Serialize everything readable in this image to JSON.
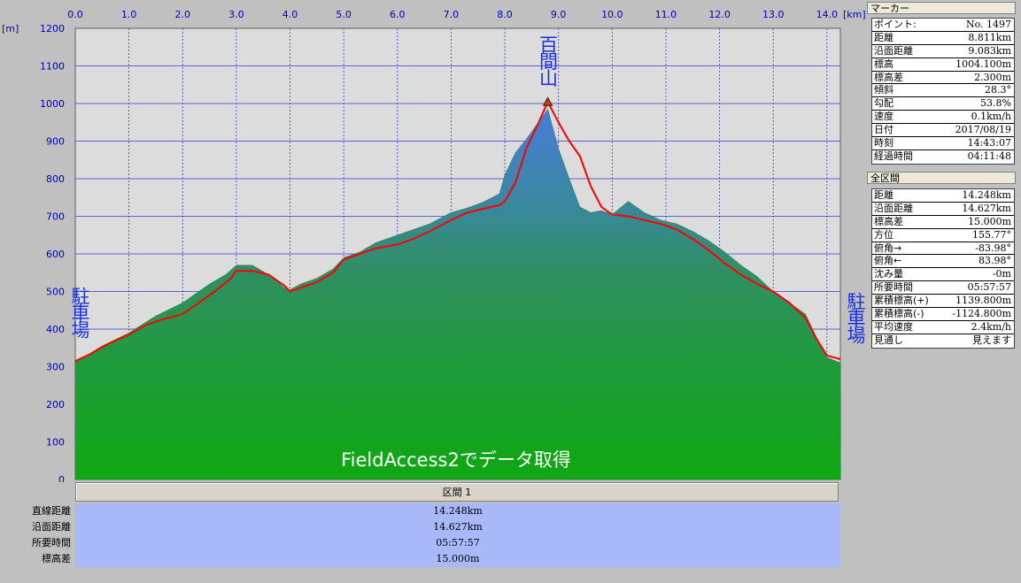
{
  "chart_data": {
    "type": "area",
    "x_unit": "[km]",
    "y_unit": "[m]",
    "x_ticks": [
      "0.0",
      "1.0",
      "2.0",
      "3.0",
      "4.0",
      "5.0",
      "6.0",
      "7.0",
      "8.0",
      "9.0",
      "10.0",
      "11.0",
      "12.0",
      "13.0",
      "14.0"
    ],
    "y_ticks": [
      "0",
      "100",
      "200",
      "300",
      "400",
      "500",
      "600",
      "700",
      "800",
      "900",
      "1000",
      "1100",
      "1200"
    ],
    "xlim": [
      0,
      14.25
    ],
    "ylim": [
      0,
      1200
    ],
    "grid": true,
    "series": [
      {
        "color": "#22a028",
        "x": [
          0,
          0.5,
          1.0,
          1.5,
          2.0,
          2.5,
          2.8,
          3.0,
          3.3,
          3.6,
          3.9,
          4.0,
          4.2,
          4.5,
          4.8,
          5.0,
          5.3,
          5.6,
          6.0,
          6.3,
          6.6,
          7.0,
          7.3,
          7.6,
          7.9,
          8.0,
          8.2,
          8.4,
          8.6,
          8.8,
          9.0,
          9.2,
          9.4,
          9.6,
          9.8,
          10.0,
          10.3,
          10.6,
          10.9,
          11.2,
          11.5,
          11.8,
          12.1,
          12.4,
          12.7,
          13.0,
          13.3,
          13.6,
          13.8,
          14.0,
          14.25
        ],
        "y": [
          312,
          355,
          390,
          435,
          470,
          520,
          545,
          570,
          570,
          545,
          510,
          505,
          520,
          535,
          560,
          590,
          605,
          630,
          650,
          665,
          680,
          710,
          722,
          738,
          760,
          810,
          870,
          905,
          945,
          985,
          880,
          800,
          725,
          710,
          715,
          705,
          740,
          710,
          690,
          680,
          660,
          635,
          605,
          570,
          540,
          500,
          470,
          440,
          380,
          325,
          310
        ]
      },
      {
        "color": "#ff0000",
        "x": [
          0,
          0.3,
          0.6,
          1.0,
          1.3,
          1.6,
          2.0,
          2.3,
          2.6,
          2.9,
          3.0,
          3.3,
          3.6,
          3.9,
          4.0,
          4.2,
          4.5,
          4.8,
          5.0,
          5.3,
          5.6,
          6.0,
          6.3,
          6.6,
          7.0,
          7.3,
          7.6,
          7.9,
          8.0,
          8.2,
          8.4,
          8.6,
          8.8,
          9.0,
          9.2,
          9.4,
          9.6,
          9.8,
          10.0,
          10.3,
          10.6,
          10.9,
          11.2,
          11.5,
          11.8,
          12.1,
          12.4,
          12.7,
          13.0,
          13.3,
          13.6,
          13.8,
          14.0,
          14.25
        ],
        "y": [
          315,
          335,
          360,
          385,
          410,
          425,
          440,
          470,
          500,
          535,
          555,
          555,
          545,
          515,
          500,
          510,
          525,
          550,
          585,
          600,
          615,
          625,
          640,
          660,
          690,
          710,
          720,
          730,
          740,
          790,
          880,
          940,
          1004,
          950,
          900,
          860,
          780,
          725,
          705,
          700,
          690,
          680,
          665,
          640,
          610,
          575,
          545,
          520,
          500,
          470,
          430,
          375,
          330,
          320
        ]
      }
    ],
    "annotations": [
      {
        "text": "百間山",
        "x": 8.8,
        "y": 1004
      },
      {
        "text": "駐車場",
        "position": "left"
      },
      {
        "text": "駐車場",
        "position": "right"
      },
      {
        "text": "FieldAccess2でデータ取得",
        "position": "bottom-center"
      }
    ]
  },
  "section": {
    "header": "区間 1",
    "rows": [
      {
        "label": "直線距離",
        "value": "14.248km"
      },
      {
        "label": "沿面距離",
        "value": "14.627km"
      },
      {
        "label": "所要時間",
        "value": "05:57:57"
      },
      {
        "label": "標高差",
        "value": "15.000m"
      }
    ]
  },
  "marker_panel": {
    "title": "マーカー",
    "rows": [
      {
        "label": "ポイント:",
        "value": "No. 1497"
      },
      {
        "label": "距離",
        "value": "8.811km"
      },
      {
        "label": "沿面距離",
        "value": "9.083km"
      },
      {
        "label": "標高",
        "value": "1004.100m"
      },
      {
        "label": "標高差",
        "value": "2.300m"
      },
      {
        "label": "傾斜",
        "value": "28.3°"
      },
      {
        "label": "勾配",
        "value": "53.8%"
      },
      {
        "label": "速度",
        "value": "0.1km/h"
      },
      {
        "label": "日付",
        "value": "2017/08/19"
      },
      {
        "label": "時刻",
        "value": "14:43:07"
      },
      {
        "label": "経過時間",
        "value": "04:11:48"
      }
    ]
  },
  "total_panel": {
    "title": "全区間",
    "rows": [
      {
        "label": "距離",
        "value": "14.248km"
      },
      {
        "label": "沿面距離",
        "value": "14.627km"
      },
      {
        "label": "標高差",
        "value": "15.000m"
      },
      {
        "label": "方位",
        "value": "155.77°"
      },
      {
        "label": "俯角→",
        "value": "-83.98°"
      },
      {
        "label": "俯角←",
        "value": "83.98°"
      },
      {
        "label": "沈み量",
        "value": "-0m"
      },
      {
        "label": "所要時間",
        "value": "05:57:57"
      },
      {
        "label": "累積標高(+)",
        "value": "1139.800m"
      },
      {
        "label": "累積標高(-)",
        "value": "-1124.800m"
      },
      {
        "label": "平均速度",
        "value": "2.4km/h"
      },
      {
        "label": "見通し",
        "value": "見えます"
      }
    ]
  }
}
